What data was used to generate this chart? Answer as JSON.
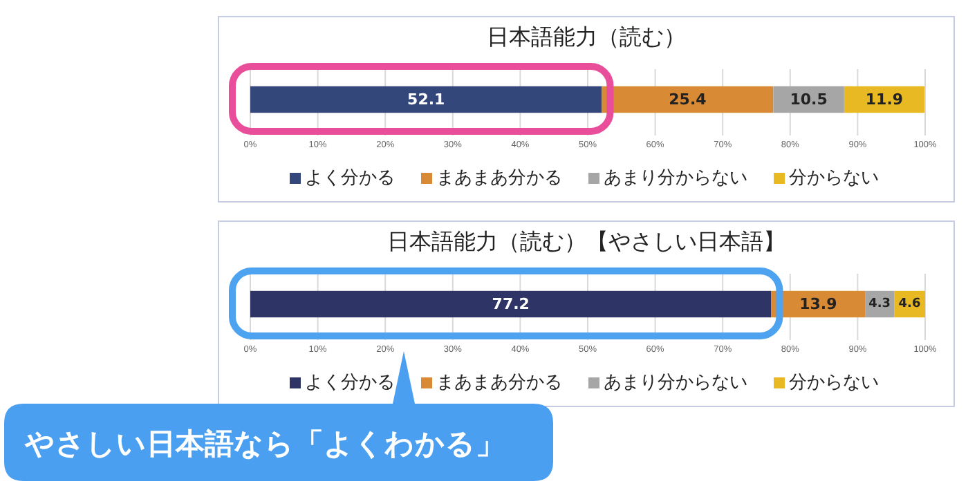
{
  "chart_data": [
    {
      "type": "bar",
      "title": "日本語能力（読む）",
      "orientation": "horizontal",
      "stacked": true,
      "categories": [
        null
      ],
      "data_labels": true,
      "legend": "bottom",
      "grid": "x",
      "xlim": [
        0,
        100
      ],
      "xticks": [
        {
          "value": 0,
          "label": "0%"
        },
        {
          "value": 10,
          "label": "10%"
        },
        {
          "value": 20,
          "label": "20%"
        },
        {
          "value": 30,
          "label": "30%"
        },
        {
          "value": 40,
          "label": "40%"
        },
        {
          "value": 50,
          "label": "50%"
        },
        {
          "value": 60,
          "label": "60%"
        },
        {
          "value": 70,
          "label": "70%"
        },
        {
          "value": 80,
          "label": "80%"
        },
        {
          "value": 90,
          "label": "90%"
        },
        {
          "value": 100,
          "label": "100%"
        }
      ],
      "series": [
        {
          "name": "よく分かる",
          "color": "#34477a",
          "values": [
            52.1
          ]
        },
        {
          "name": "まあまあ分かる",
          "color": "#d98a35",
          "values": [
            25.4
          ]
        },
        {
          "name": "あまり分からない",
          "color": "#a6a6a6",
          "values": [
            10.5
          ]
        },
        {
          "name": "分からない",
          "color": "#e8b923",
          "values": [
            11.9
          ]
        }
      ]
    },
    {
      "type": "bar",
      "title": "日本語能力（読む）【やさしい日本語】",
      "orientation": "horizontal",
      "stacked": true,
      "categories": [
        null
      ],
      "data_labels": true,
      "legend": "bottom",
      "grid": "x",
      "xlim": [
        0,
        100
      ],
      "xticks": [
        {
          "value": 0,
          "label": "0%"
        },
        {
          "value": 10,
          "label": "10%"
        },
        {
          "value": 20,
          "label": "20%"
        },
        {
          "value": 30,
          "label": "30%"
        },
        {
          "value": 40,
          "label": "40%"
        },
        {
          "value": 50,
          "label": "50%"
        },
        {
          "value": 60,
          "label": "60%"
        },
        {
          "value": 70,
          "label": "70%"
        },
        {
          "value": 80,
          "label": "80%"
        },
        {
          "value": 90,
          "label": "90%"
        },
        {
          "value": 100,
          "label": "100%"
        }
      ],
      "annotations": [
        "やさしい日本語なら「よくわかる」"
      ],
      "series": [
        {
          "name": "よく分かる",
          "color": "#2e3466",
          "values": [
            77.2
          ]
        },
        {
          "name": "まあまあ分かる",
          "color": "#d98a35",
          "values": [
            13.9
          ]
        },
        {
          "name": "あまり分からない",
          "color": "#a6a6a6",
          "values": [
            4.3
          ]
        },
        {
          "name": "分からない",
          "color": "#e8b923",
          "values": [
            4.6
          ]
        }
      ]
    }
  ]
}
